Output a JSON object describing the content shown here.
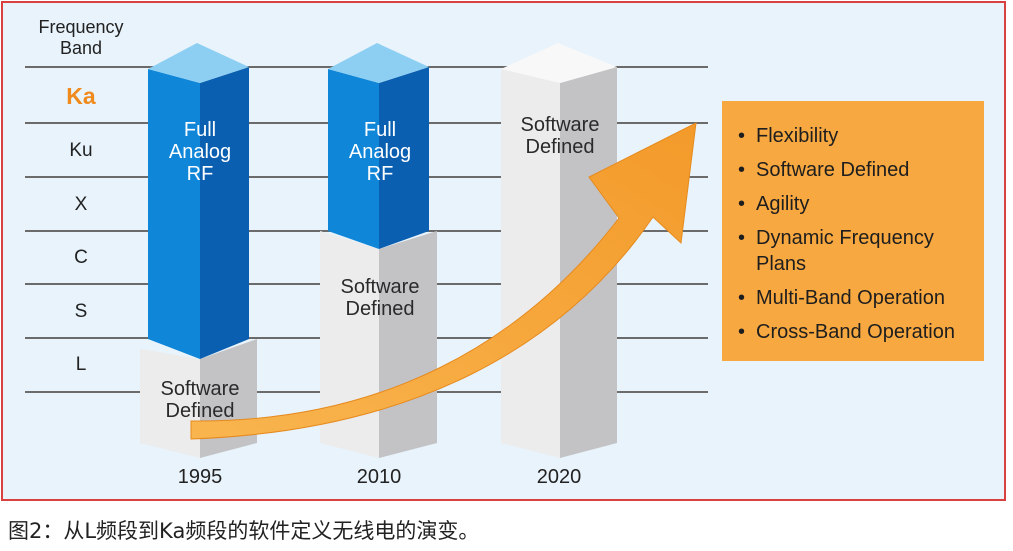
{
  "axis": {
    "title_line1": "Frequency",
    "title_line2": "Band",
    "bands": [
      "Ka",
      "Ku",
      "X",
      "C",
      "S",
      "L"
    ],
    "highlight_color": "#f08a1c"
  },
  "columns": [
    {
      "year": "1995",
      "top_line1": "Full",
      "top_line2": "Analog",
      "top_line3": "RF",
      "bottom_line1": "Software",
      "bottom_line2": "Defined"
    },
    {
      "year": "2010",
      "top_line1": "Full",
      "top_line2": "Analog",
      "top_line3": "RF",
      "bottom_line1": "Software",
      "bottom_line2": "Defined"
    },
    {
      "year": "2020",
      "top_line1": "Software",
      "top_line2": "Defined"
    }
  ],
  "benefits": [
    "Flexibility",
    "Software Defined",
    "Agility",
    "Dynamic Frequency Plans",
    "Multi-Band Operation",
    "Cross-Band Operation"
  ],
  "caption": "图2：从L频段到Ka频段的软件定义无线电的演变。",
  "colors": {
    "blue_front": "#0f86d8",
    "blue_side": "#0b5fb0",
    "blue_top": "#8dcff3",
    "grey_front": "#ececec",
    "grey_side": "#c3c3c6",
    "grey_top": "#f8f8f8",
    "arrow": "#f7a840",
    "panel": "#f7a840",
    "frame": "#d94141"
  }
}
